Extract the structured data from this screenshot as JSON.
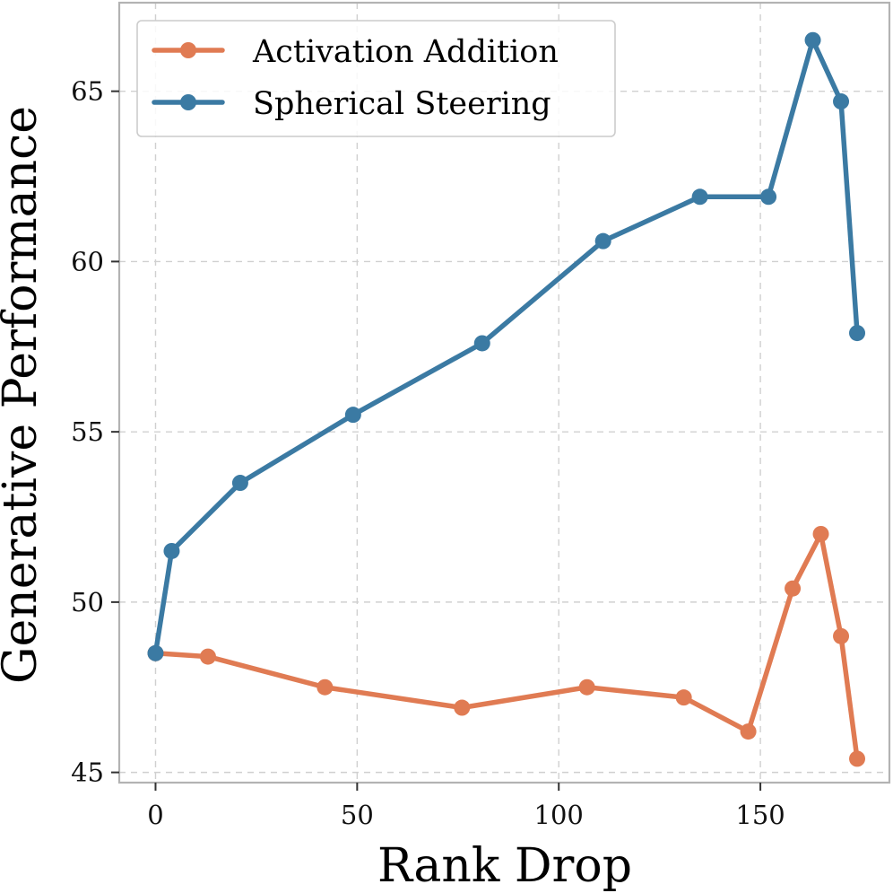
{
  "chart_data": {
    "type": "line",
    "xlabel": "Rank Drop",
    "ylabel": "Generative Performance",
    "xlim": [
      -9,
      182
    ],
    "ylim": [
      44.7,
      67.6
    ],
    "xticks": [
      0,
      50,
      100,
      150
    ],
    "yticks": [
      45,
      50,
      55,
      60,
      65
    ],
    "grid": true,
    "legend_position": "top-left",
    "series": [
      {
        "name": "Activation Addition",
        "color": "#E07B53",
        "x": [
          0,
          13,
          42,
          76,
          107,
          131,
          147,
          158,
          165,
          170,
          174
        ],
        "y": [
          48.5,
          48.4,
          47.5,
          46.9,
          47.5,
          47.2,
          46.2,
          50.4,
          52.0,
          49.0,
          45.4
        ]
      },
      {
        "name": "Spherical Steering",
        "color": "#3B7AA3",
        "x": [
          0,
          4,
          21,
          49,
          81,
          111,
          135,
          152,
          163,
          170,
          174
        ],
        "y": [
          48.5,
          51.5,
          53.5,
          55.5,
          57.6,
          60.6,
          61.9,
          61.9,
          66.5,
          64.7,
          57.9
        ]
      }
    ]
  }
}
